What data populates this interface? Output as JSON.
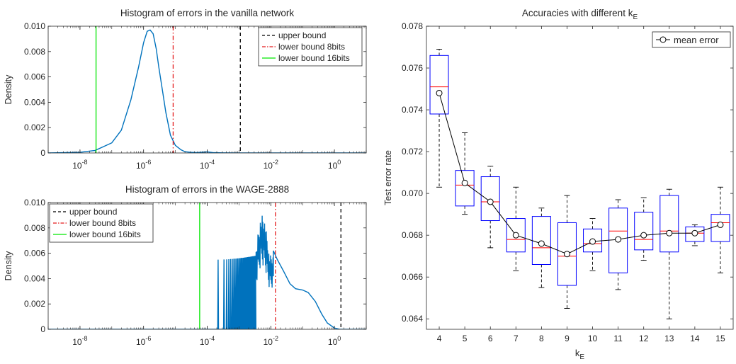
{
  "chart_data": [
    {
      "type": "line",
      "title": "Histogram of errors in the vanilla network",
      "xlabel": "",
      "ylabel": "Density",
      "xscale": "log",
      "xlim": [
        1e-09,
        10
      ],
      "ylim": [
        0,
        0.01
      ],
      "xticks": [
        1e-08,
        1e-06,
        0.0001,
        0.01,
        1
      ],
      "xtick_exponents": [
        "-8",
        "-6",
        "-4",
        "-2",
        "0"
      ],
      "yticks": [
        "0",
        "0.002",
        "0.004",
        "0.006",
        "0.008",
        "0.010"
      ],
      "legend_position": "top-right",
      "grid": false,
      "curve": {
        "color": "#0072bd",
        "x": [
          1e-09,
          1e-08,
          3e-08,
          1e-07,
          2e-07,
          4e-07,
          7e-07,
          1e-06,
          1.3e-06,
          1.6e-06,
          2e-06,
          2.5e-06,
          3e-06,
          4e-06,
          5e-06,
          7e-06,
          1e-05,
          1.5e-05,
          2e-05,
          3e-05,
          5e-05,
          0.0001,
          0.00015,
          0.0003,
          0.001,
          0.01,
          10
        ],
        "y": [
          0,
          5e-05,
          0.0002,
          0.0008,
          0.0018,
          0.0042,
          0.0068,
          0.0087,
          0.0096,
          0.0097,
          0.0094,
          0.0082,
          0.0068,
          0.0048,
          0.0032,
          0.0014,
          0.0006,
          0.00025,
          0.0001,
          5e-05,
          3e-05,
          9e-05,
          3e-05,
          1e-05,
          0,
          0,
          0
        ]
      },
      "vlines": [
        {
          "label": "upper bound",
          "x": 0.0011,
          "color": "#000000",
          "style": "dashed"
        },
        {
          "label": "lower bound 8bits",
          "x": 8.5e-06,
          "color": "#e31a1c",
          "style": "dashdot"
        },
        {
          "label": "lower bound 16bits",
          "x": 3.2e-08,
          "color": "#00e600",
          "style": "solid"
        }
      ]
    },
    {
      "type": "line",
      "title": "Histogram of errors in the WAGE-2888",
      "xlabel": "",
      "ylabel": "Density",
      "xscale": "log",
      "xlim": [
        1e-09,
        10
      ],
      "ylim": [
        0,
        0.01
      ],
      "xticks": [
        1e-08,
        1e-06,
        0.0001,
        0.01,
        1
      ],
      "xtick_exponents": [
        "-8",
        "-6",
        "-4",
        "-2",
        "0"
      ],
      "yticks": [
        "0",
        "0.002",
        "0.004",
        "0.006",
        "0.008",
        "0.010"
      ],
      "legend_position": "top-left",
      "grid": false,
      "curve": {
        "color": "#0072bd",
        "description": "discrete spikes from ~2e-4 to ~3e-3 rising to ~0.0055, dense spikes ~3e-3 to ~1e-2 up to ~0.009, then smoothly decaying density to ~1.5",
        "spikes": {
          "x_start": 0.00022,
          "x_end": 0.0033,
          "count": 30,
          "h_start": 0.0055,
          "h_end": 0.0058
        },
        "dense_region": {
          "x_start": 0.0033,
          "x_end": 0.012,
          "h_max": 0.0092
        },
        "tail": {
          "x": [
            0.012,
            0.016,
            0.025,
            0.04,
            0.06,
            0.1,
            0.15,
            0.25,
            0.4,
            0.6,
            1,
            1.5,
            10
          ],
          "y": [
            0.0062,
            0.0055,
            0.0046,
            0.0036,
            0.0032,
            0.0031,
            0.0029,
            0.0022,
            0.0012,
            0.0005,
            0.0001,
            0,
            0
          ]
        }
      },
      "vlines": [
        {
          "label": "upper bound",
          "x": 1.6,
          "color": "#000000",
          "style": "dashed"
        },
        {
          "label": "lower bound 8bits",
          "x": 0.014,
          "color": "#e31a1c",
          "style": "dashdot"
        },
        {
          "label": "lower bound 16bits",
          "x": 5.8e-05,
          "color": "#00e600",
          "style": "solid"
        }
      ]
    },
    {
      "type": "box",
      "title_text": "Accuracies with different k",
      "title_subscript": "E",
      "xlabel_text": "k",
      "xlabel_subscript": "E",
      "ylabel": "Test error rate",
      "ylim": [
        0.0635,
        0.078
      ],
      "yticks": [
        "0.064",
        "0.066",
        "0.068",
        "0.070",
        "0.072",
        "0.074",
        "0.076",
        "0.078"
      ],
      "legend": {
        "label": "mean error",
        "position": "top-right"
      },
      "grid": false,
      "categories": [
        "4",
        "5",
        "6",
        "7",
        "8",
        "9",
        "10",
        "11",
        "12",
        "13",
        "14",
        "15"
      ],
      "boxes": [
        {
          "q1": 0.0738,
          "median": 0.0751,
          "q3": 0.0766,
          "wlo": 0.0703,
          "whi": 0.0769,
          "mean": 0.0748
        },
        {
          "q1": 0.0694,
          "median": 0.0704,
          "q3": 0.0711,
          "wlo": 0.069,
          "whi": 0.0729,
          "mean": 0.0705
        },
        {
          "q1": 0.0687,
          "median": 0.0696,
          "q3": 0.0708,
          "wlo": 0.0674,
          "whi": 0.0713,
          "mean": 0.0696
        },
        {
          "q1": 0.0672,
          "median": 0.0678,
          "q3": 0.0688,
          "wlo": 0.0663,
          "whi": 0.0703,
          "mean": 0.068
        },
        {
          "q1": 0.0666,
          "median": 0.0674,
          "q3": 0.0689,
          "wlo": 0.0655,
          "whi": 0.0693,
          "mean": 0.0676
        },
        {
          "q1": 0.0656,
          "median": 0.067,
          "q3": 0.0686,
          "wlo": 0.0645,
          "whi": 0.0699,
          "mean": 0.0671
        },
        {
          "q1": 0.0672,
          "median": 0.0676,
          "q3": 0.0683,
          "wlo": 0.0663,
          "whi": 0.0688,
          "mean": 0.0677
        },
        {
          "q1": 0.0662,
          "median": 0.0682,
          "q3": 0.0693,
          "wlo": 0.0654,
          "whi": 0.0697,
          "mean": 0.0678
        },
        {
          "q1": 0.0673,
          "median": 0.0678,
          "q3": 0.0691,
          "wlo": 0.0668,
          "whi": 0.0698,
          "mean": 0.068
        },
        {
          "q1": 0.0672,
          "median": 0.0682,
          "q3": 0.0699,
          "wlo": 0.064,
          "whi": 0.0702,
          "mean": 0.0681
        },
        {
          "q1": 0.0677,
          "median": 0.0681,
          "q3": 0.0684,
          "wlo": 0.0675,
          "whi": 0.0685,
          "mean": 0.0681
        },
        {
          "q1": 0.0677,
          "median": 0.0686,
          "q3": 0.069,
          "wlo": 0.0662,
          "whi": 0.0703,
          "mean": 0.0685
        }
      ],
      "colors": {
        "box": "#0000ff",
        "median": "#ff0000",
        "whisker": "#000000",
        "mean": "#000000"
      }
    }
  ]
}
